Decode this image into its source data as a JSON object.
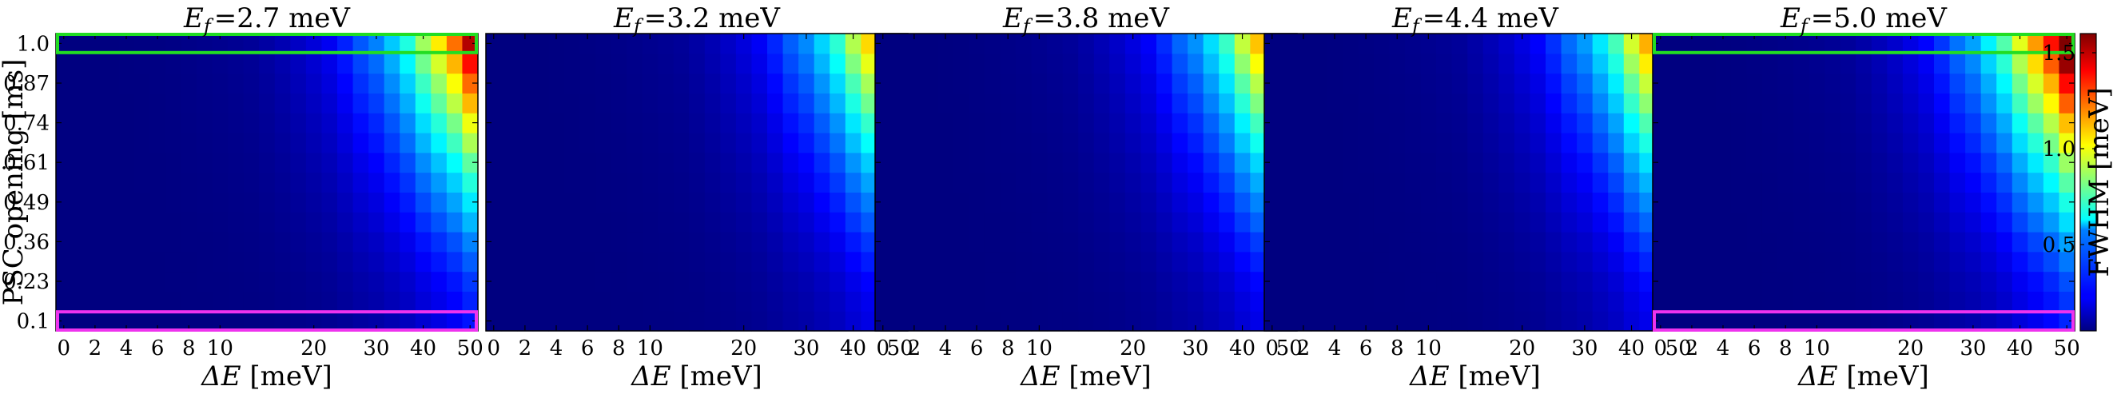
{
  "chart_data": {
    "type": "heatmap",
    "colormap": "jet",
    "panels": [
      {
        "title": "E_f =2.7 meV",
        "ef_value": "=2.7 meV",
        "highlight": true
      },
      {
        "title": "E_f =3.2 meV",
        "ef_value": "=3.2 meV",
        "highlight": false
      },
      {
        "title": "E_f =3.8 meV",
        "ef_value": "=3.8 meV",
        "highlight": false
      },
      {
        "title": "E_f =4.4 meV",
        "ef_value": "=4.4 meV",
        "highlight": false
      },
      {
        "title": "E_f =5.0 meV",
        "ef_value": "=5.0 meV",
        "highlight": true
      }
    ],
    "ef_symbol": "E",
    "ef_subscript": "f",
    "x_tick_labels": [
      "0",
      "2",
      "4",
      "6",
      "8",
      "10",
      "20",
      "30",
      "40",
      "50"
    ],
    "x_values": [
      0,
      1,
      2,
      3,
      4,
      5,
      6,
      7,
      8,
      9,
      10,
      11,
      12,
      14,
      16,
      18,
      20,
      22,
      25,
      28,
      30,
      33,
      36,
      40,
      43,
      46,
      50
    ],
    "xlabel": "ΔE [meV]",
    "xlabel_symbol": "ΔE",
    "xlabel_unit": " [meV]",
    "ylabel": "PSC opening [ms]",
    "y_tick_labels": [
      "0.1",
      "0.23",
      "0.36",
      "0.49",
      "0.61",
      "0.74",
      "0.87",
      "1.0"
    ],
    "y_values": [
      0.1,
      0.17,
      0.23,
      0.3,
      0.36,
      0.43,
      0.49,
      0.55,
      0.61,
      0.68,
      0.74,
      0.81,
      0.87,
      0.94,
      1.0
    ],
    "colorbar": {
      "label": "FWHM [meV]",
      "ticks": [
        "0.5",
        "1.0",
        "1.5"
      ],
      "tick_values": [
        0.5,
        1.0,
        1.5
      ],
      "range": [
        0.05,
        1.6
      ]
    },
    "fwhm_model": {
      "base": 0.05,
      "scale": 1.55,
      "y_exponent": 1.6,
      "x_exponent": 2.6
    },
    "highlights": [
      {
        "label": "top row",
        "y_value": 1.0,
        "color": "#22dd22"
      },
      {
        "label": "bottom row",
        "y_value": 0.1,
        "color": "#ee33ee"
      }
    ]
  }
}
